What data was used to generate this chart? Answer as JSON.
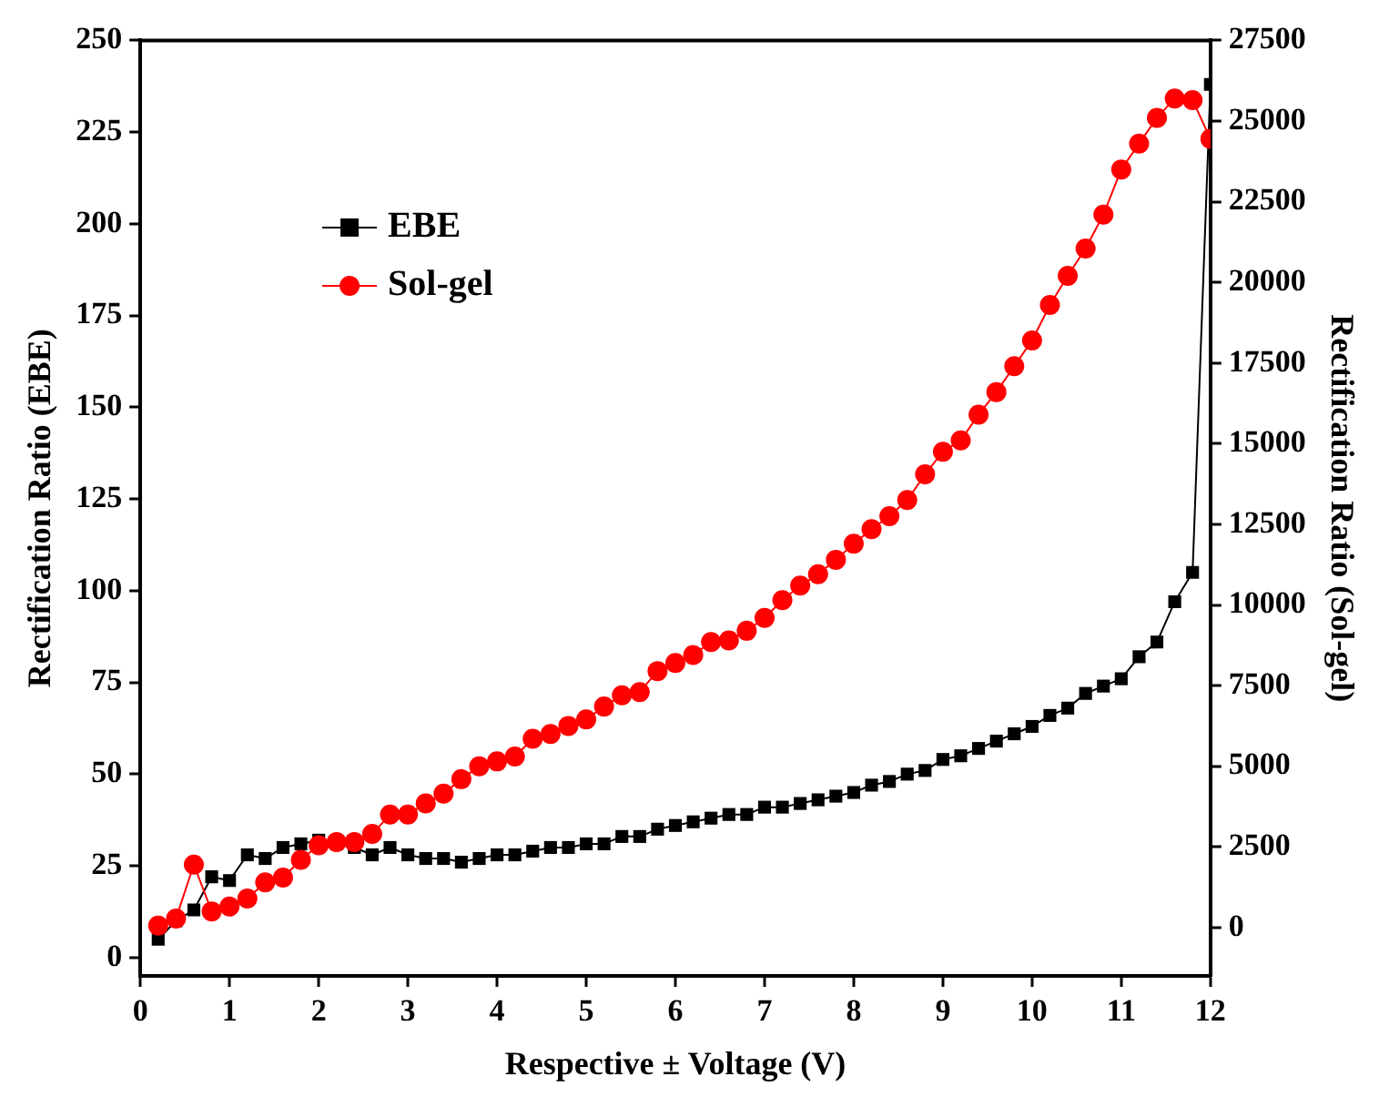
{
  "chart_data": {
    "type": "line",
    "xlabel": "Respective ± Voltage (V)",
    "ylabel": "Rectification Ratio (EBE)",
    "y2label": "Rectification Ratio (Sol-gel)",
    "x": [
      0.2,
      0.4,
      0.6,
      0.8,
      1.0,
      1.2,
      1.4,
      1.6,
      1.8,
      2.0,
      2.2,
      2.4,
      2.6,
      2.8,
      3.0,
      3.2,
      3.4,
      3.6,
      3.8,
      4.0,
      4.2,
      4.4,
      4.6,
      4.8,
      5.0,
      5.2,
      5.4,
      5.6,
      5.8,
      6.0,
      6.2,
      6.4,
      6.6,
      6.8,
      7.0,
      7.2,
      7.4,
      7.6,
      7.8,
      8.0,
      8.2,
      8.4,
      8.6,
      8.8,
      9.0,
      9.2,
      9.4,
      9.6,
      9.8,
      10.0,
      10.2,
      10.4,
      10.6,
      10.8,
      11.0,
      11.2,
      11.4,
      11.6,
      11.8,
      12.0
    ],
    "series": [
      {
        "name": "EBE",
        "color": "#000000",
        "marker": "square",
        "values": [
          5,
          10,
          13,
          22,
          21,
          28,
          27,
          30,
          31,
          32,
          31,
          30,
          28,
          30,
          28,
          27,
          27,
          26,
          27,
          28,
          28,
          29,
          30,
          30,
          31,
          31,
          33,
          33,
          35,
          36,
          37,
          38,
          39,
          39,
          41,
          41,
          42,
          43,
          44,
          45,
          47,
          48,
          50,
          51,
          54,
          55,
          57,
          59,
          61,
          63,
          66,
          68,
          72,
          74,
          76,
          82,
          86,
          97,
          105,
          238
        ]
      },
      {
        "name": "Sol-gel",
        "color": "#ff0000",
        "marker": "circle",
        "axis": "y2",
        "values": [
          60,
          280,
          1950,
          500,
          650,
          900,
          1400,
          1550,
          2100,
          2550,
          2650,
          2650,
          2900,
          3500,
          3500,
          3850,
          4150,
          4600,
          5000,
          5150,
          5300,
          5850,
          6000,
          6250,
          6450,
          6850,
          7200,
          7300,
          7950,
          8200,
          8450,
          8850,
          8900,
          9200,
          9600,
          10150,
          10600,
          10950,
          11400,
          11900,
          12350,
          12750,
          13250,
          14050,
          14750,
          15100,
          15900,
          16600,
          17400,
          18200,
          19300,
          20200,
          21050,
          22100,
          23500,
          24300,
          25100,
          25700,
          25650,
          24450
        ]
      }
    ],
    "xlim": [
      0,
      12
    ],
    "xticks": [
      0,
      1,
      2,
      3,
      4,
      5,
      6,
      7,
      8,
      9,
      10,
      11,
      12
    ],
    "ylim": [
      -5,
      250
    ],
    "yticks": [
      0,
      25,
      50,
      75,
      100,
      125,
      150,
      175,
      200,
      225,
      250
    ],
    "y2lim": [
      -1500,
      27500
    ],
    "y2ticks": [
      0,
      2500,
      5000,
      7500,
      10000,
      12500,
      15000,
      17500,
      20000,
      22500,
      25000,
      27500
    ],
    "grid": false,
    "legend": "top left"
  }
}
